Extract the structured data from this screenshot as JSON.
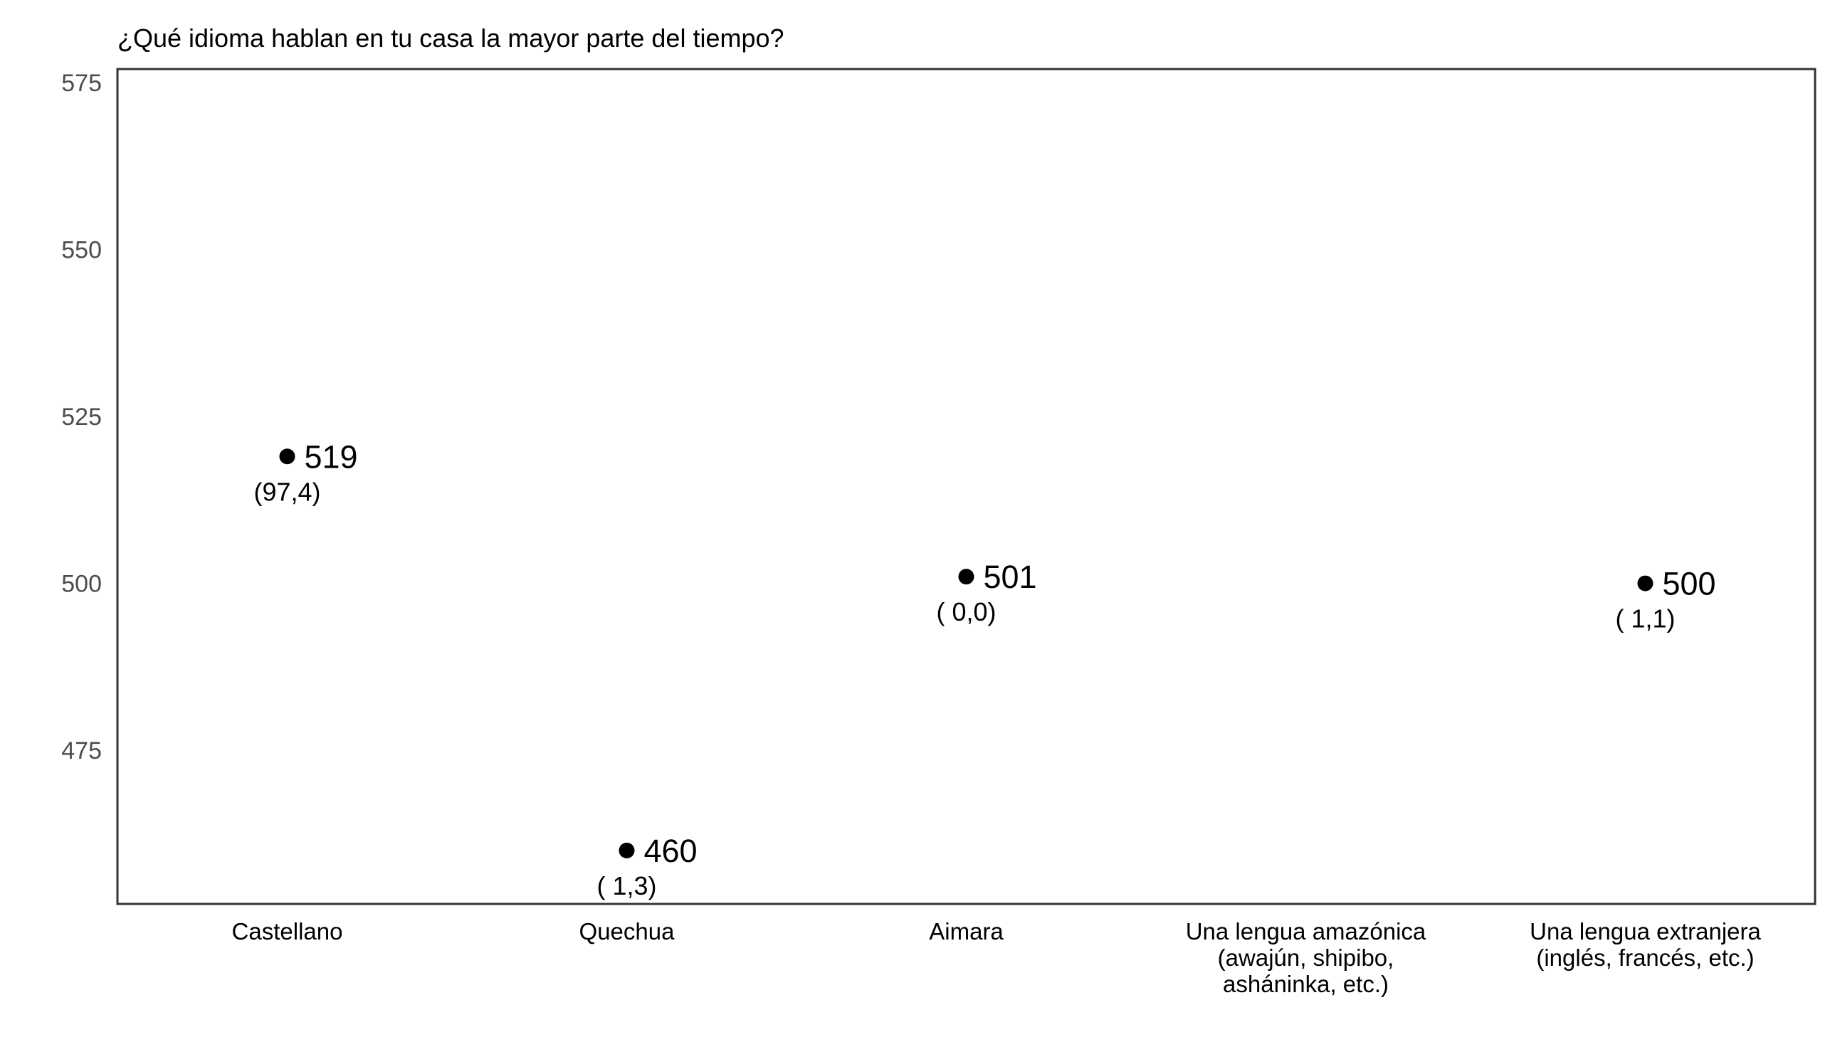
{
  "chart_data": {
    "type": "scatter",
    "title": "¿Qué idioma hablan en tu casa la mayor parte del tiempo?",
    "xlabel": "",
    "ylabel": "",
    "ylim": [
      452,
      577
    ],
    "yticks": [
      475,
      500,
      525,
      550,
      575
    ],
    "grid": false,
    "categories": [
      [
        "Castellano"
      ],
      [
        "Quechua"
      ],
      [
        "Aimara"
      ],
      [
        "Una lengua amazónica",
        "(awajún, shipibo,",
        "asháninka, etc.)"
      ],
      [
        "Una lengua extranjera",
        "(inglés, francés, etc.)"
      ]
    ],
    "points": [
      {
        "category_index": 0,
        "value": 519,
        "label": "519",
        "percent_label": "(97,4)"
      },
      {
        "category_index": 1,
        "value": 460,
        "label": "460",
        "percent_label": "( 1,3)"
      },
      {
        "category_index": 2,
        "value": 501,
        "label": "501",
        "percent_label": "( 0,0)"
      },
      {
        "category_index": 4,
        "value": 500,
        "label": "500",
        "percent_label": "( 1,1)"
      }
    ]
  }
}
